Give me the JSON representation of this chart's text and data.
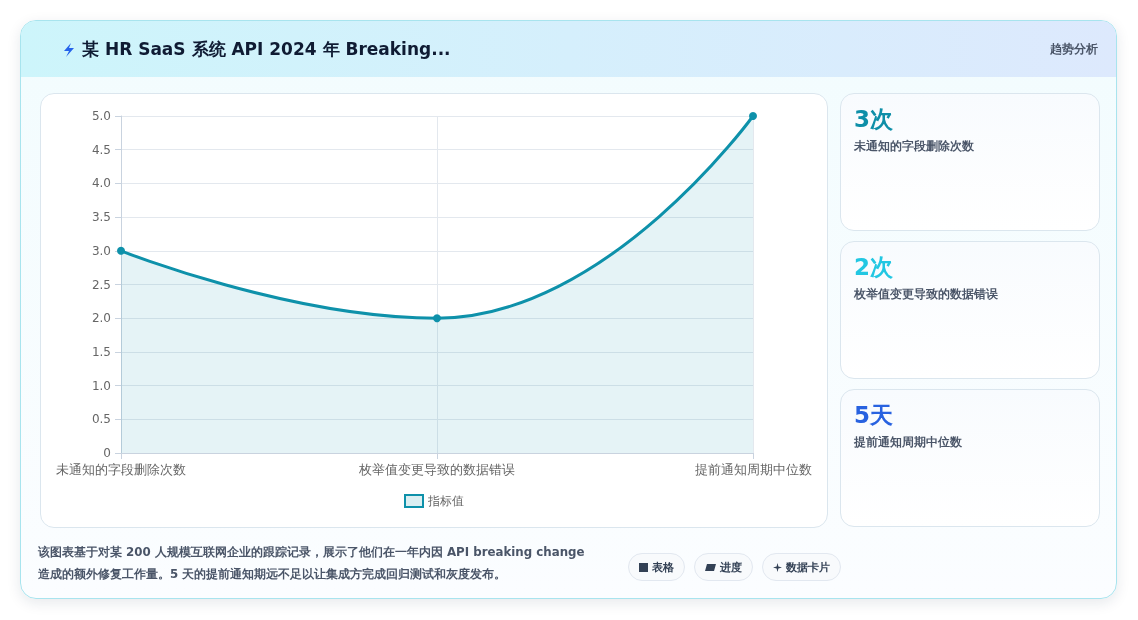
{
  "chart_data": [
    {
      "type": "area",
      "title": "某 HR SaaS 系统 API 2024 年 Breaking...",
      "categories": [
        "未通知的字段删除次数",
        "枚举值变更导致的数据错误",
        "提前通知周期中位数"
      ],
      "series": [
        {
          "name": "指标值",
          "color": "#0e91aa",
          "values": [
            3,
            2,
            5
          ]
        }
      ],
      "ylim": [
        0,
        5
      ],
      "yticks": [
        0,
        0.5,
        {
          "value": 1,
          "label": "1.0"
        },
        1.5,
        {
          "value": 2,
          "label": "2.0"
        },
        2.5,
        {
          "value": 3,
          "label": "3.0"
        },
        3.5,
        {
          "value": 4,
          "label": "4.0"
        },
        4.5,
        {
          "value": 5,
          "label": "5.0"
        }
      ],
      "grid": true,
      "legend": "bottom",
      "marker": "circle",
      "annotations": [
        "趋势分析",
        "该图表基于对某 200 人规模互联网企业的跟踪记录，展示了他们在一年内因 API breaking change 造成的额外修复工作量。5 天的提前通知期远不足以让集成方完成回归测试和灰度发布。",
        "表格",
        "进度",
        "数据卡片"
      ]
    },
    {
      "type": "other",
      "annotations": [
        "3次",
        "未通知的字段删除次数",
        "2次",
        "枚举值变更导致的数据错误",
        "5天",
        "提前通知周期中位数"
      ]
    }
  ]
}
